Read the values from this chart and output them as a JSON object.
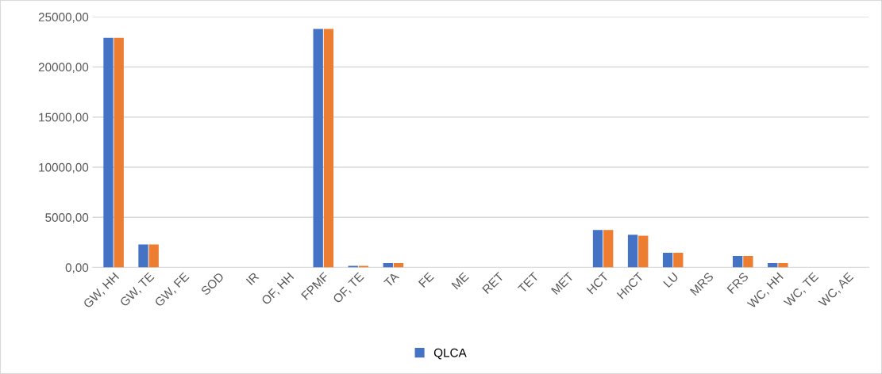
{
  "chart_data": {
    "type": "bar",
    "categories": [
      "GW, HH",
      "GW, TE",
      "GW, FE",
      "SOD",
      "IR",
      "OF, HH",
      "FPMF",
      "OF, TE",
      "TA",
      "FE",
      "ME",
      "RET",
      "TET",
      "MET",
      "HCT",
      "HnCT",
      "LU",
      "MRS",
      "FRS",
      "WC, HH",
      "WC, TE",
      "WC, AE"
    ],
    "series": [
      {
        "name": "QLCA",
        "color": "#4472c4",
        "values": [
          22900,
          2300,
          0,
          0,
          0,
          0,
          23800,
          150,
          430,
          0,
          0,
          0,
          0,
          0,
          3740,
          3250,
          1460,
          0,
          1140,
          430,
          0,
          0
        ]
      },
      {
        "color": "#ed7d31",
        "values": [
          22900,
          2300,
          0,
          0,
          0,
          0,
          23800,
          150,
          430,
          0,
          0,
          0,
          0,
          0,
          3740,
          3170,
          1460,
          0,
          1140,
          430,
          0,
          0
        ]
      }
    ],
    "ylim": [
      0,
      25000
    ],
    "yticks": [
      {
        "value": 0,
        "label": "0,00"
      },
      {
        "value": 5000,
        "label": "5000,00"
      },
      {
        "value": 10000,
        "label": "10000,00"
      },
      {
        "value": 15000,
        "label": "15000,00"
      },
      {
        "value": 20000,
        "label": "20000,00"
      },
      {
        "value": 25000,
        "label": "25000,00"
      }
    ],
    "grid": "y",
    "legend": "bottom"
  }
}
